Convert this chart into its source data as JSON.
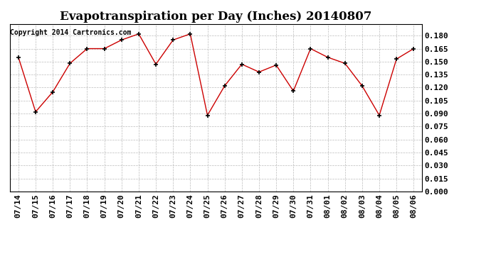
{
  "title": "Evapotranspiration per Day (Inches) 20140807",
  "copyright_text": "Copyright 2014 Cartronics.com",
  "dates": [
    "07/14",
    "07/15",
    "07/16",
    "07/17",
    "07/18",
    "07/19",
    "07/20",
    "07/21",
    "07/22",
    "07/23",
    "07/24",
    "07/25",
    "07/26",
    "07/27",
    "07/28",
    "07/29",
    "07/30",
    "07/31",
    "08/01",
    "08/02",
    "08/03",
    "08/04",
    "08/05",
    "08/06"
  ],
  "values": [
    0.155,
    0.092,
    0.115,
    0.148,
    0.165,
    0.165,
    0.175,
    0.182,
    0.147,
    0.175,
    0.182,
    0.088,
    0.122,
    0.147,
    0.138,
    0.146,
    0.116,
    0.165,
    0.155,
    0.148,
    0.122,
    0.088,
    0.153,
    0.165
  ],
  "ylim": [
    0.0,
    0.1935
  ],
  "yticks": [
    0.0,
    0.015,
    0.03,
    0.045,
    0.06,
    0.075,
    0.09,
    0.105,
    0.12,
    0.135,
    0.15,
    0.165,
    0.18
  ],
  "line_color": "#cc0000",
  "marker_color": "#000000",
  "background_color": "#ffffff",
  "grid_color": "#bbbbbb",
  "legend_bg": "#cc0000",
  "legend_text_color": "#ffffff",
  "title_fontsize": 12,
  "tick_fontsize": 8,
  "copyright_fontsize": 7
}
